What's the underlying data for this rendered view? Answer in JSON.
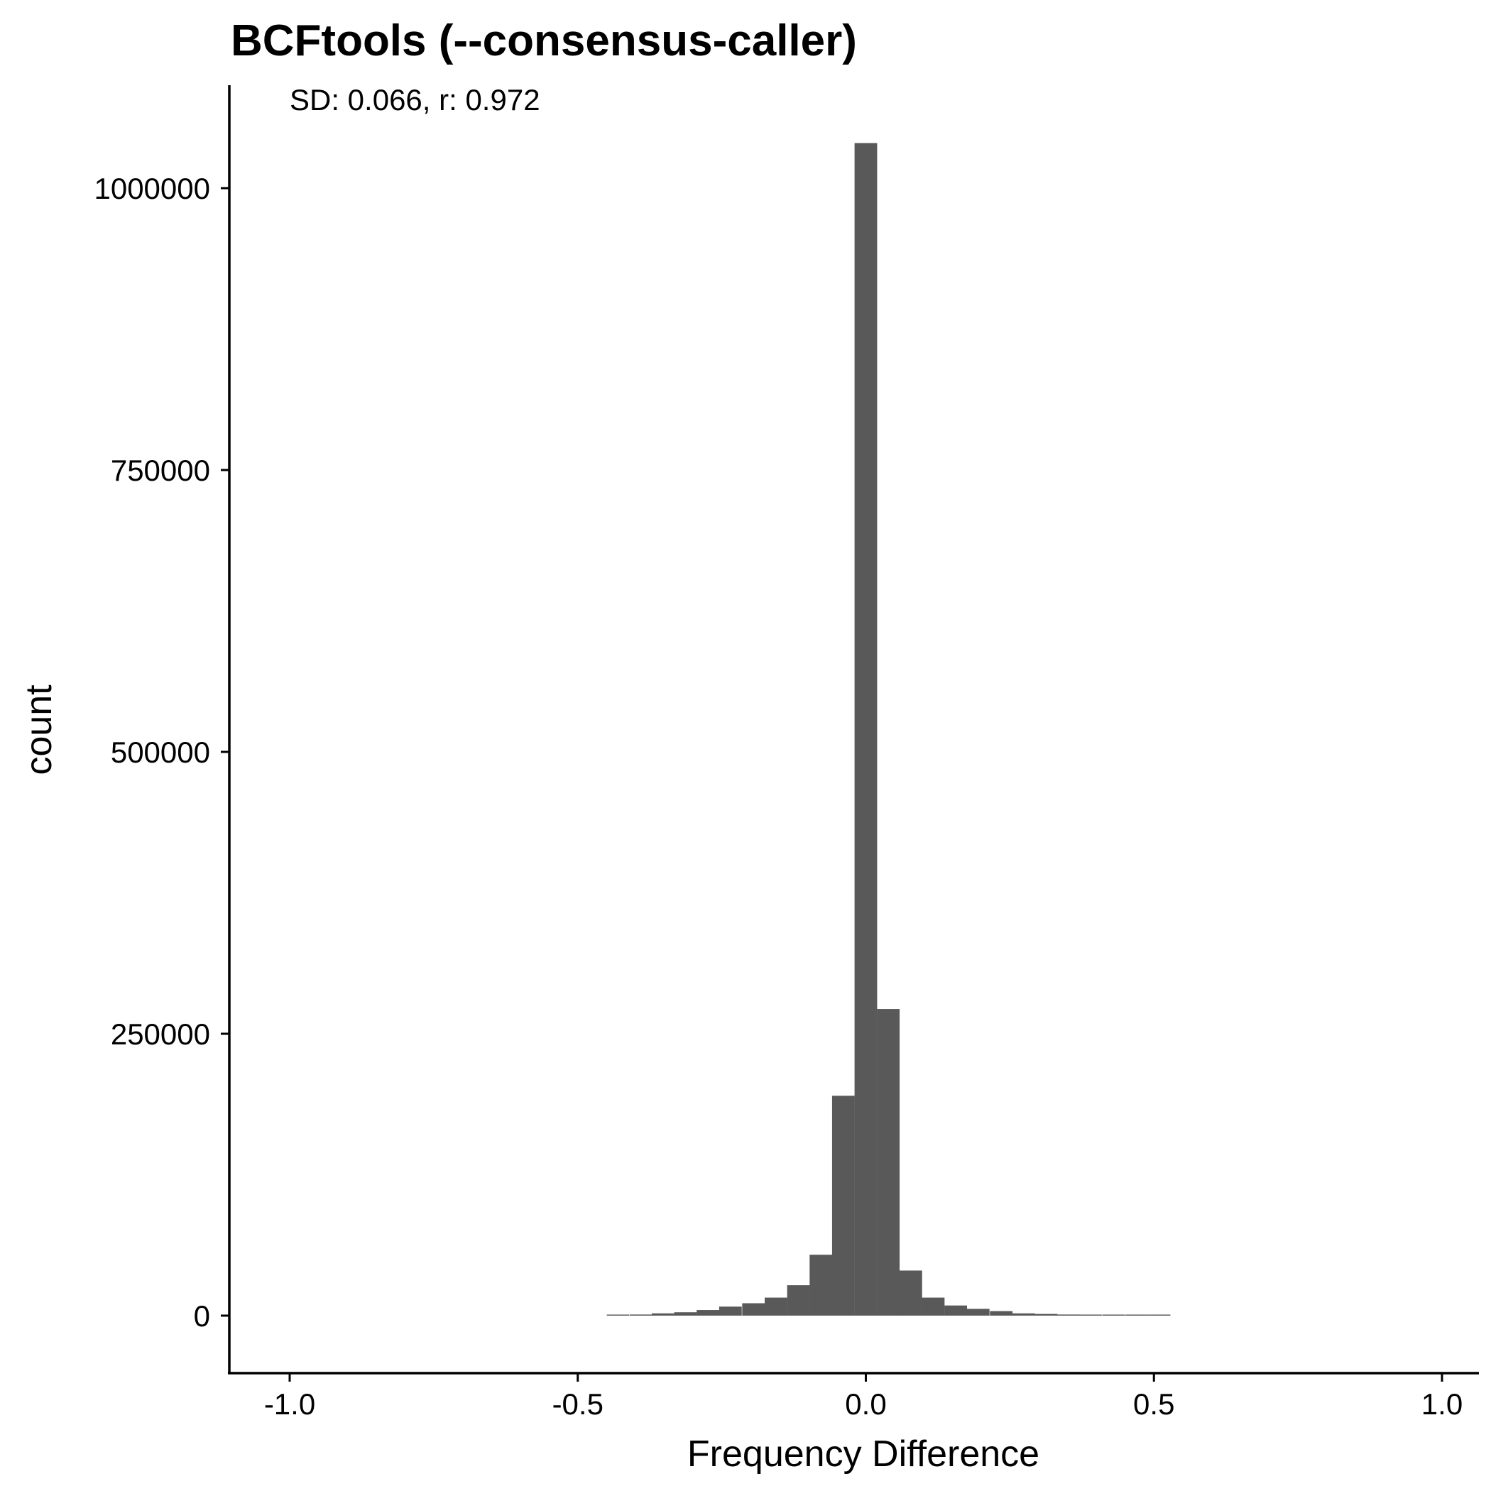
{
  "chart_data": {
    "type": "bar",
    "title": "BCFtools (--consensus-caller)",
    "annotation": "SD: 0.066, r: 0.972",
    "xlabel": "Frequency Difference",
    "ylabel": "count",
    "xlim": [
      -1.0,
      1.0
    ],
    "ylim": [
      0,
      1000000
    ],
    "xticks": [
      "-1.0",
      "-0.5",
      "0.0",
      "0.5",
      "1.0"
    ],
    "yticks": [
      "0",
      "250000",
      "500000",
      "750000",
      "1000000"
    ],
    "grid": false,
    "bar_color": "#595959",
    "bin_width": 0.0392,
    "bins": [
      {
        "x": -0.43,
        "count": 500
      },
      {
        "x": -0.39,
        "count": 1000
      },
      {
        "x": -0.352,
        "count": 2000
      },
      {
        "x": -0.313,
        "count": 3000
      },
      {
        "x": -0.274,
        "count": 5000
      },
      {
        "x": -0.235,
        "count": 8000
      },
      {
        "x": -0.195,
        "count": 11000
      },
      {
        "x": -0.156,
        "count": 16000
      },
      {
        "x": -0.117,
        "count": 27000
      },
      {
        "x": -0.078,
        "count": 54000
      },
      {
        "x": -0.039,
        "count": 195000
      },
      {
        "x": 0.0,
        "count": 1040000
      },
      {
        "x": 0.039,
        "count": 272000
      },
      {
        "x": 0.078,
        "count": 40000
      },
      {
        "x": 0.117,
        "count": 16000
      },
      {
        "x": 0.156,
        "count": 9000
      },
      {
        "x": 0.195,
        "count": 6000
      },
      {
        "x": 0.235,
        "count": 4000
      },
      {
        "x": 0.274,
        "count": 2000
      },
      {
        "x": 0.313,
        "count": 1500
      },
      {
        "x": 0.352,
        "count": 1000
      },
      {
        "x": 0.39,
        "count": 800
      },
      {
        "x": 0.43,
        "count": 500
      },
      {
        "x": 0.47,
        "count": 300
      },
      {
        "x": 0.509,
        "count": 200
      }
    ]
  }
}
